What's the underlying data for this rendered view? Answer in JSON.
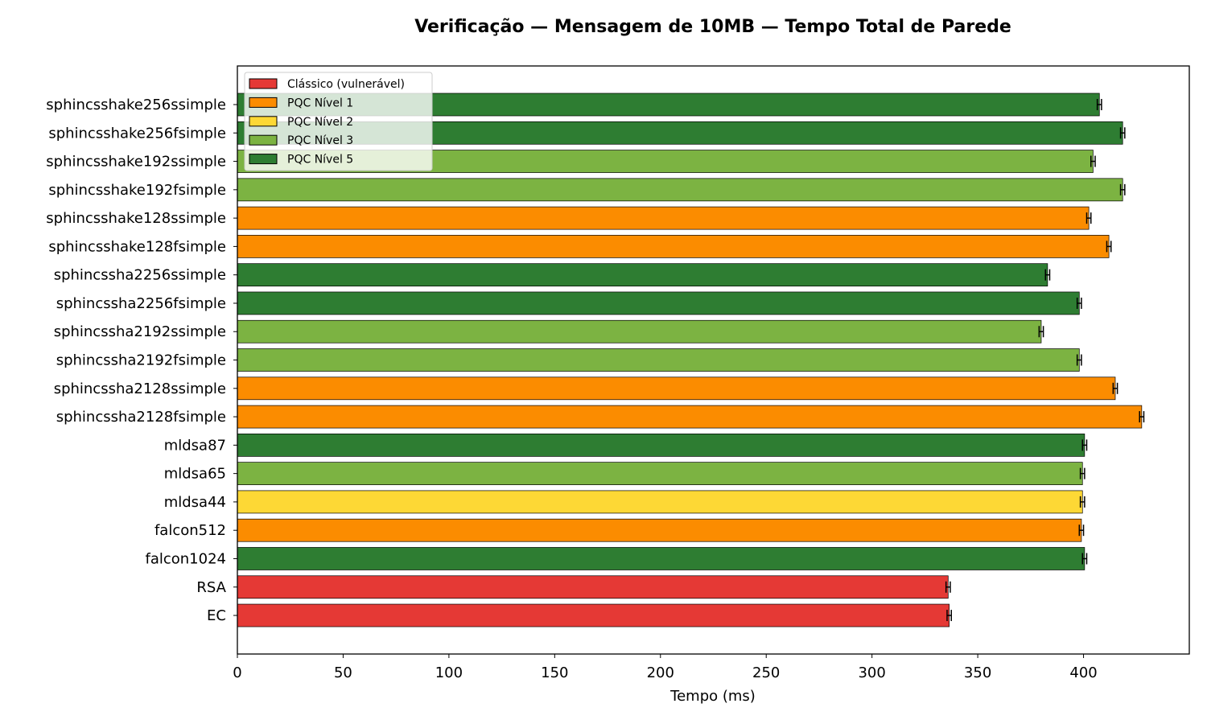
{
  "chart_data": {
    "type": "bar",
    "orientation": "horizontal",
    "title": "Verificação — Mensagem de 10MB — Tempo Total de Parede",
    "xlabel": "Tempo (ms)",
    "ylabel": "",
    "xlim": [
      0,
      450
    ],
    "xticks": [
      0,
      50,
      100,
      150,
      200,
      250,
      300,
      350,
      400
    ],
    "grid": false,
    "legend_position": "top-left",
    "legend": [
      {
        "label": "Clássico (vulnerável)",
        "color": "#e53935"
      },
      {
        "label": "PQC Nível 1",
        "color": "#fb8c00"
      },
      {
        "label": "PQC Nível 2",
        "color": "#fdd835"
      },
      {
        "label": "PQC Nível 3",
        "color": "#7cb342"
      },
      {
        "label": "PQC Nível 5",
        "color": "#2e7d32"
      }
    ],
    "bars": [
      {
        "label": "sphincsshake256ssimple",
        "value": 407.5,
        "error": 1.0,
        "group": 4
      },
      {
        "label": "sphincsshake256fsimple",
        "value": 418.5,
        "error": 1.0,
        "group": 4
      },
      {
        "label": "sphincsshake192ssimple",
        "value": 404.5,
        "error": 1.0,
        "group": 3
      },
      {
        "label": "sphincsshake192fsimple",
        "value": 418.5,
        "error": 1.0,
        "group": 3
      },
      {
        "label": "sphincsshake128ssimple",
        "value": 402.5,
        "error": 1.0,
        "group": 1
      },
      {
        "label": "sphincsshake128fsimple",
        "value": 412.0,
        "error": 1.0,
        "group": 1
      },
      {
        "label": "sphincssha2256ssimple",
        "value": 383.0,
        "error": 1.0,
        "group": 4
      },
      {
        "label": "sphincssha2256fsimple",
        "value": 398.0,
        "error": 1.0,
        "group": 4
      },
      {
        "label": "sphincssha2192ssimple",
        "value": 380.0,
        "error": 1.0,
        "group": 3
      },
      {
        "label": "sphincssha2192fsimple",
        "value": 398.0,
        "error": 1.0,
        "group": 3
      },
      {
        "label": "sphincssha2128ssimple",
        "value": 415.0,
        "error": 1.0,
        "group": 1
      },
      {
        "label": "sphincssha2128fsimple",
        "value": 427.5,
        "error": 1.0,
        "group": 1
      },
      {
        "label": "mldsa87",
        "value": 400.5,
        "error": 1.0,
        "group": 4
      },
      {
        "label": "mldsa65",
        "value": 399.5,
        "error": 1.0,
        "group": 3
      },
      {
        "label": "mldsa44",
        "value": 399.5,
        "error": 1.0,
        "group": 2
      },
      {
        "label": "falcon512",
        "value": 399.0,
        "error": 1.0,
        "group": 1
      },
      {
        "label": "falcon1024",
        "value": 400.5,
        "error": 1.0,
        "group": 4
      },
      {
        "label": "RSA",
        "value": 336.0,
        "error": 1.0,
        "group": 0
      },
      {
        "label": "EC",
        "value": 336.5,
        "error": 1.0,
        "group": 0
      }
    ]
  }
}
